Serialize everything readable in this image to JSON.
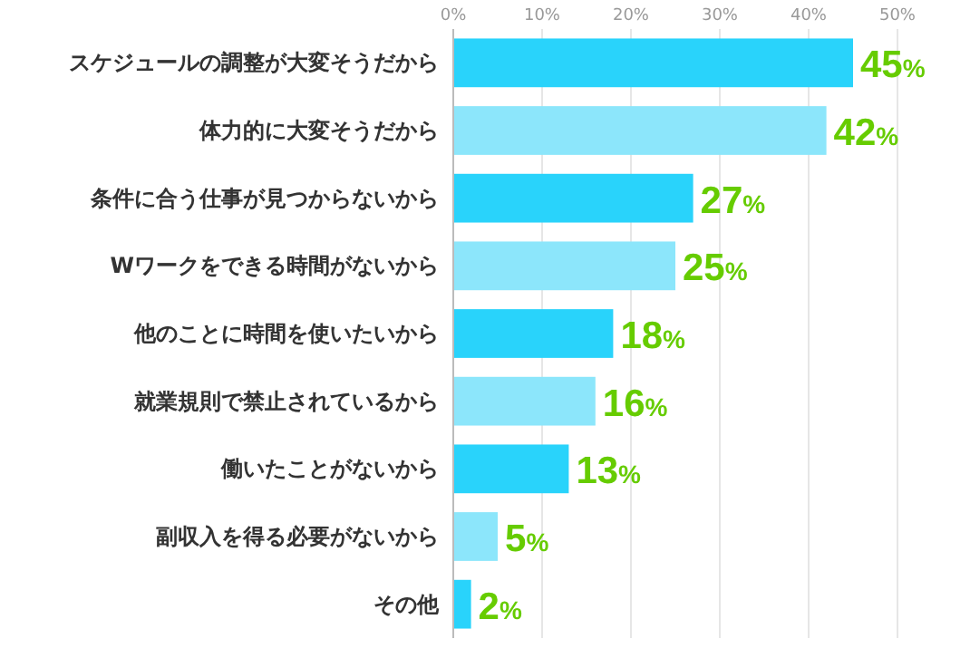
{
  "chart_data": {
    "type": "bar",
    "orientation": "horizontal",
    "categories": [
      "スケジュールの調整が大変そうだから",
      "体力的に大変そうだから",
      "条件に合う仕事が見つからないから",
      "Wワークをできる時間がないから",
      "他のことに時間を使いたいから",
      "就業規則で禁止されているから",
      "働いたことがないから",
      "副収入を得る必要がないから",
      "その他"
    ],
    "values": [
      45,
      42,
      27,
      25,
      18,
      16,
      13,
      5,
      2
    ],
    "colors": [
      "#29d3fb",
      "#8ce6fb",
      "#29d3fb",
      "#8ce6fb",
      "#29d3fb",
      "#8ce6fb",
      "#29d3fb",
      "#8ce6fb",
      "#29d3fb"
    ],
    "value_labels": [
      "45%",
      "42%",
      "27%",
      "25%",
      "18%",
      "16%",
      "13%",
      "5%",
      "2%"
    ],
    "xlim": [
      0,
      50
    ],
    "xticks": [
      {
        "value": 0,
        "label": "0%"
      },
      {
        "value": 10,
        "label": "10%"
      },
      {
        "value": 20,
        "label": "20%"
      },
      {
        "value": 30,
        "label": "30%"
      },
      {
        "value": 40,
        "label": "40%"
      },
      {
        "value": 50,
        "label": "50%"
      }
    ],
    "grid": "x"
  }
}
